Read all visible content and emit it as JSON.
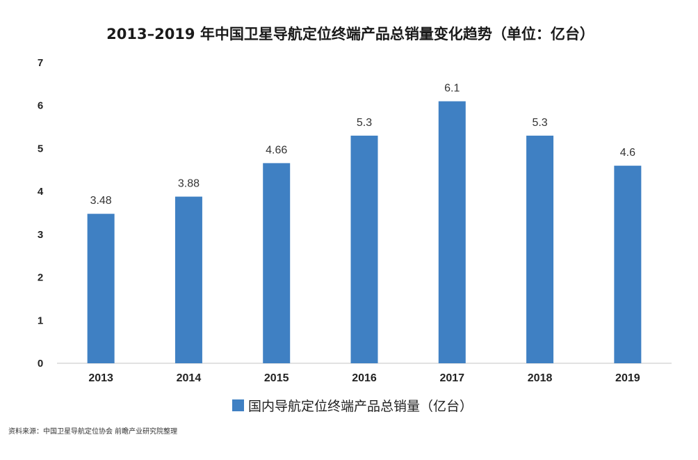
{
  "chart_data": {
    "type": "bar",
    "title": "2013–2019 年中国卫星导航定位终端产品总销量变化趋势（单位：亿台）",
    "categories": [
      "2013",
      "2014",
      "2015",
      "2016",
      "2017",
      "2018",
      "2019"
    ],
    "series": [
      {
        "name": "国内导航定位终端产品总销量（亿台）",
        "values": [
          3.48,
          3.88,
          4.66,
          5.3,
          6.1,
          5.3,
          4.6
        ],
        "labels": [
          "3.48",
          "3.88",
          "4.66",
          "5.3",
          "6.1",
          "5.3",
          "4.6"
        ],
        "color": "#3f80c3"
      }
    ],
    "y_ticks": [
      "0",
      "1",
      "2",
      "3",
      "4",
      "5",
      "6",
      "7"
    ],
    "ylim": [
      0,
      7
    ],
    "xlabel": "",
    "ylabel": "",
    "grid": false,
    "legend_position": "bottom",
    "axis_color": "#d9d9d9"
  },
  "source": "资料来源：中国卫星导航定位协会 前瞻产业研究院整理"
}
